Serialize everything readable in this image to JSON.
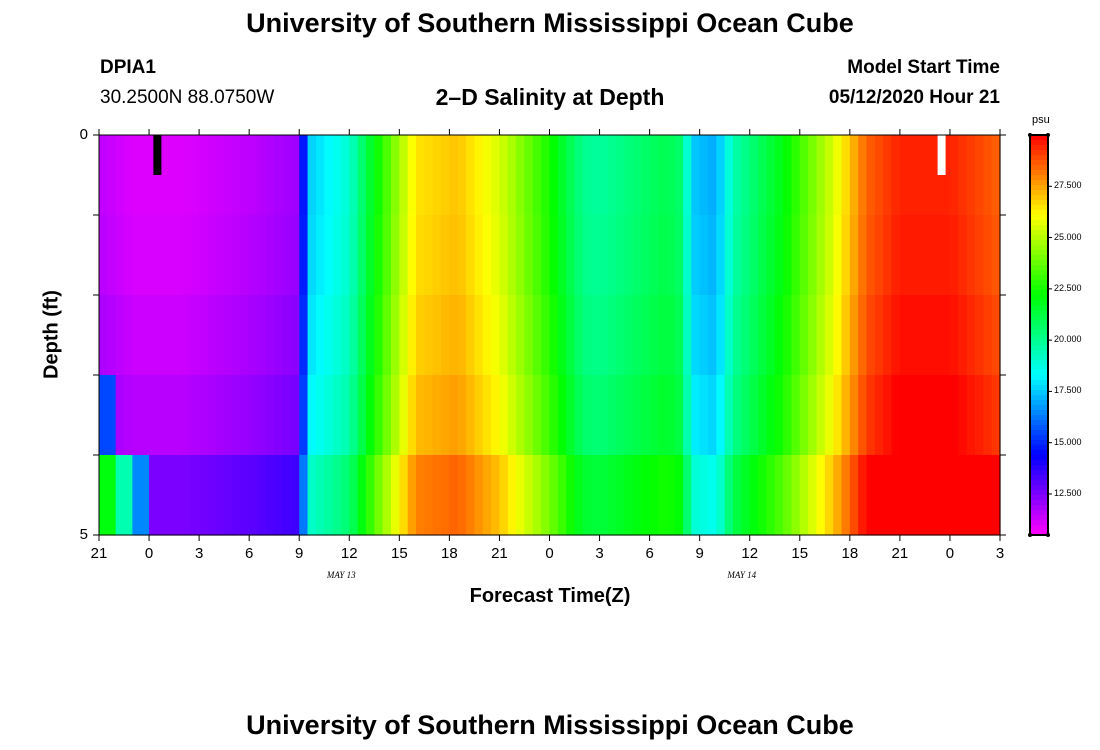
{
  "header": {
    "title": "University of Southern Mississippi Ocean Cube",
    "footer_title": "University of Southern Mississippi Ocean Cube",
    "station": "DPIA1",
    "coords": "30.2500N 88.0750W",
    "subtitle": "2–D Salinity at Depth",
    "model_start_label": "Model Start Time",
    "model_start_value": "05/12/2020 Hour 21"
  },
  "chart_data": {
    "type": "heatmap",
    "title": "2–D Salinity at Depth",
    "xlabel": "Forecast Time(Z)",
    "ylabel": "Depth (ft)",
    "x_tick_labels": [
      "21",
      "0",
      "3",
      "6",
      "9",
      "12",
      "15",
      "18",
      "21",
      "0",
      "3",
      "6",
      "9",
      "12",
      "15",
      "18",
      "21",
      "0",
      "3"
    ],
    "x_date_labels": [
      {
        "text": "MAY 13",
        "after_tick_index": 5
      },
      {
        "text": "MAY 14",
        "after_tick_index": 13
      }
    ],
    "y_tick_labels": [
      "0",
      "5"
    ],
    "ylim": [
      0,
      5
    ],
    "colorbar": {
      "unit": "psu",
      "min": 10.5,
      "max": 30.0,
      "tick_labels": [
        "27.500",
        "25.000",
        "22.500",
        "20.000",
        "17.500",
        "15.000",
        "12.500"
      ],
      "tick_values": [
        27.5,
        25.0,
        22.5,
        20.0,
        17.5,
        15.0,
        12.5
      ]
    },
    "depth_layers": 5,
    "time_hours_start": 0,
    "time_hours_end": 54,
    "salinity_profile": [
      {
        "hour": 0,
        "psu": 11.5
      },
      {
        "hour": 2,
        "psu": 11.0
      },
      {
        "hour": 5,
        "psu": 11.0
      },
      {
        "hour": 9,
        "psu": 11.5
      },
      {
        "hour": 12,
        "psu": 12.0
      },
      {
        "hour": 12.5,
        "psu": 17.5
      },
      {
        "hour": 15,
        "psu": 19.0
      },
      {
        "hour": 16.5,
        "psu": 22.0
      },
      {
        "hour": 19,
        "psu": 26.5
      },
      {
        "hour": 21.5,
        "psu": 27.0
      },
      {
        "hour": 24,
        "psu": 25.5
      },
      {
        "hour": 27,
        "psu": 22.5
      },
      {
        "hour": 29,
        "psu": 20.0
      },
      {
        "hour": 30,
        "psu": 19.8
      },
      {
        "hour": 34,
        "psu": 21.0
      },
      {
        "hour": 35,
        "psu": 20.5
      },
      {
        "hour": 35.5,
        "psu": 17.5
      },
      {
        "hour": 37,
        "psu": 17.0
      },
      {
        "hour": 38,
        "psu": 19.5
      },
      {
        "hour": 41,
        "psu": 22.0
      },
      {
        "hour": 44,
        "psu": 25.5
      },
      {
        "hour": 46,
        "psu": 28.5
      },
      {
        "hour": 48,
        "psu": 29.5
      },
      {
        "hour": 51,
        "psu": 29.5
      },
      {
        "hour": 54,
        "psu": 28.5
      }
    ],
    "depth_offsets_psu": [
      0.0,
      0.1,
      0.3,
      0.6,
      1.5
    ],
    "near_start_bottom_psu": [
      {
        "layer": 3,
        "hour": 0,
        "psu": 15.5
      },
      {
        "layer": 4,
        "hour": 0,
        "psu": 22.0
      },
      {
        "layer": 4,
        "hour": 1,
        "psu": 19.5
      },
      {
        "layer": 4,
        "hour": 2,
        "psu": 16.5
      }
    ],
    "markers": [
      {
        "hour": 3.5,
        "color": "#000000"
      },
      {
        "hour": 50.5,
        "color": "#ffffff"
      }
    ]
  }
}
